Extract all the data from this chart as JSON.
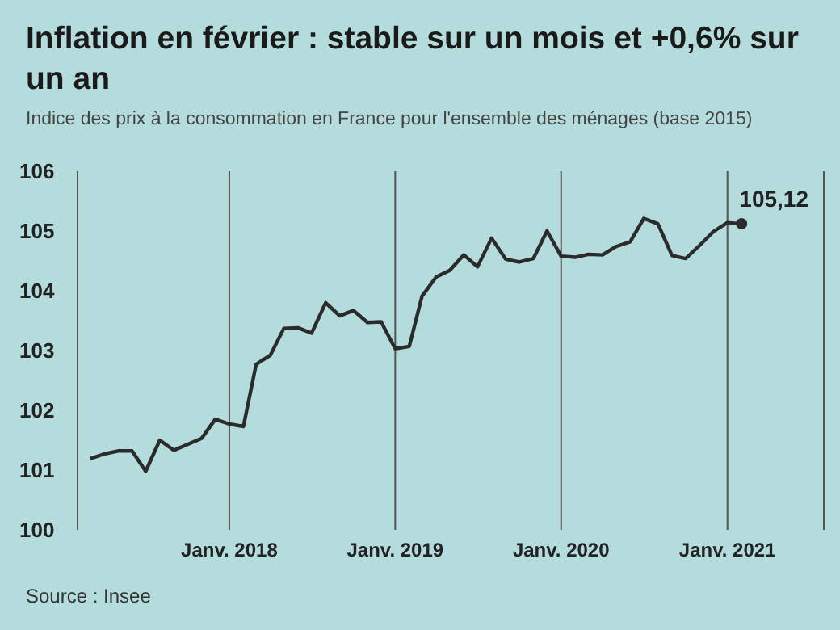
{
  "chart_data": {
    "type": "line",
    "title": "Inflation en février : stable sur un mois et +0,6% sur un an",
    "subtitle": "Indice des prix à la consommation en France pour l'ensemble des ménages (base 2015)",
    "x": [
      "2017-03",
      "2017-04",
      "2017-05",
      "2017-06",
      "2017-07",
      "2017-08",
      "2017-09",
      "2017-10",
      "2017-11",
      "2017-12",
      "2018-01",
      "2018-02",
      "2018-03",
      "2018-04",
      "2018-05",
      "2018-06",
      "2018-07",
      "2018-08",
      "2018-09",
      "2018-10",
      "2018-11",
      "2018-12",
      "2019-01",
      "2019-02",
      "2019-03",
      "2019-04",
      "2019-05",
      "2019-06",
      "2019-07",
      "2019-08",
      "2019-09",
      "2019-10",
      "2019-11",
      "2019-12",
      "2020-01",
      "2020-02",
      "2020-03",
      "2020-04",
      "2020-05",
      "2020-06",
      "2020-07",
      "2020-08",
      "2020-09",
      "2020-10",
      "2020-11",
      "2020-12",
      "2021-01",
      "2021-02"
    ],
    "series": [
      {
        "color": "#2b2b2b",
        "values": [
          101.19,
          101.27,
          101.32,
          101.32,
          100.98,
          101.5,
          101.33,
          101.43,
          101.53,
          101.85,
          101.77,
          101.73,
          102.77,
          102.92,
          103.37,
          103.38,
          103.29,
          103.8,
          103.58,
          103.67,
          103.47,
          103.48,
          103.03,
          103.07,
          103.91,
          104.23,
          104.34,
          104.6,
          104.4,
          104.88,
          104.53,
          104.48,
          104.54,
          105.0,
          104.58,
          104.56,
          104.61,
          104.6,
          104.74,
          104.82,
          105.21,
          105.12,
          104.59,
          104.54,
          104.76,
          104.99,
          105.14,
          105.12
        ]
      }
    ],
    "xlim": [
      "2017-02",
      "2021-08"
    ],
    "xticks": [
      {
        "value": "2018-01",
        "label": "Janv. 2018"
      },
      {
        "value": "2019-01",
        "label": "Janv. 2019"
      },
      {
        "value": "2020-01",
        "label": "Janv. 2020"
      },
      {
        "value": "2021-01",
        "label": "Janv. 2021"
      }
    ],
    "ylim": [
      100,
      106
    ],
    "yticks": [
      100,
      101,
      102,
      103,
      104,
      105,
      106
    ],
    "grid": "x",
    "legend": false,
    "marker": "none",
    "line_style": "solid",
    "annotations": [
      {
        "text": "105,12",
        "x": "2021-02",
        "y": 105.12
      },
      "Source : Insee"
    ]
  }
}
